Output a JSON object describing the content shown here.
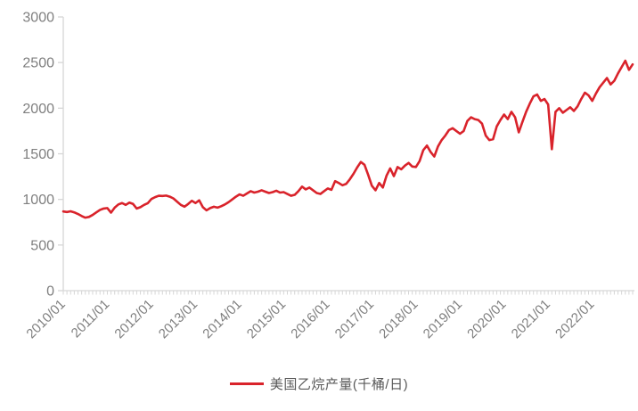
{
  "chart": {
    "legend_label": "美国乙烷产量(千桶/日)",
    "line_color": "#d9232b",
    "axis_color": "#d6d6d6",
    "tick_label_color": "#7f7f7f",
    "legend_text_color": "#595959",
    "background_color": "#ffffff"
  },
  "chart_data": {
    "type": "line",
    "title": "",
    "xlabel": "",
    "ylabel": "",
    "x_frequency": "monthly",
    "x_start": "2010/01",
    "x_end": "2022/12",
    "x_tick_labels": [
      "2010/01",
      "2011/01",
      "2012/01",
      "2013/01",
      "2014/01",
      "2015/01",
      "2016/01",
      "2017/01",
      "2018/01",
      "2019/01",
      "2020/01",
      "2021/01",
      "2022/01"
    ],
    "y_ticks": [
      0,
      500,
      1000,
      1500,
      2000,
      2500,
      3000
    ],
    "ylim": [
      0,
      3000
    ],
    "grid": false,
    "legend_position": "bottom",
    "series": [
      {
        "name": "美国乙烷产量(千桶/日)",
        "color": "#d9232b",
        "values": [
          868,
          862,
          870,
          858,
          840,
          818,
          800,
          808,
          830,
          858,
          885,
          900,
          905,
          855,
          910,
          945,
          960,
          940,
          965,
          950,
          900,
          915,
          940,
          958,
          1005,
          1025,
          1040,
          1038,
          1042,
          1030,
          1010,
          975,
          940,
          920,
          950,
          985,
          960,
          990,
          915,
          880,
          905,
          920,
          910,
          925,
          945,
          970,
          1000,
          1030,
          1055,
          1040,
          1065,
          1090,
          1075,
          1085,
          1100,
          1085,
          1070,
          1080,
          1095,
          1075,
          1080,
          1060,
          1040,
          1050,
          1090,
          1140,
          1110,
          1130,
          1100,
          1070,
          1060,
          1090,
          1120,
          1105,
          1200,
          1180,
          1155,
          1170,
          1220,
          1280,
          1350,
          1410,
          1380,
          1270,
          1150,
          1100,
          1180,
          1130,
          1260,
          1340,
          1255,
          1355,
          1330,
          1370,
          1400,
          1360,
          1355,
          1420,
          1540,
          1590,
          1520,
          1470,
          1580,
          1650,
          1700,
          1760,
          1780,
          1750,
          1720,
          1750,
          1860,
          1900,
          1880,
          1870,
          1830,
          1700,
          1650,
          1660,
          1800,
          1870,
          1930,
          1880,
          1960,
          1900,
          1735,
          1850,
          1960,
          2050,
          2130,
          2150,
          2080,
          2100,
          2040,
          1550,
          1960,
          2000,
          1950,
          1980,
          2010,
          1970,
          2020,
          2100,
          2170,
          2140,
          2080,
          2160,
          2230,
          2280,
          2330,
          2260,
          2300,
          2380,
          2450,
          2520,
          2420,
          2480
        ]
      }
    ]
  }
}
